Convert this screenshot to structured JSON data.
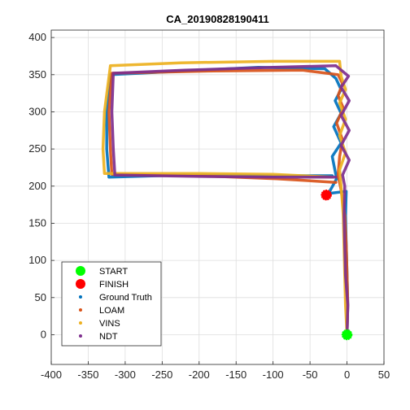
{
  "chart_data": {
    "type": "scatter",
    "title": "CA_20190828190411",
    "xlabel": "",
    "ylabel": "",
    "xlim": [
      -400,
      50
    ],
    "ylim": [
      -40,
      410
    ],
    "xticks": [
      -400,
      -350,
      -300,
      -250,
      -200,
      -150,
      -100,
      -50,
      0,
      50
    ],
    "yticks": [
      0,
      50,
      100,
      150,
      200,
      250,
      300,
      350,
      400
    ],
    "grid": true,
    "legend_position": "bottom-left",
    "legend": [
      "START",
      "FINISH",
      "Ground Truth",
      "LOAM",
      "VINS",
      "NDT"
    ],
    "markers": [
      {
        "name": "START",
        "x": 0,
        "y": 0,
        "color": "#00ff00"
      },
      {
        "name": "FINISH",
        "x": -28,
        "y": 188,
        "color": "#ff0000"
      }
    ],
    "series": [
      {
        "name": "Ground Truth",
        "color": "#0072bd",
        "points": [
          [
            0,
            0
          ],
          [
            1,
            40
          ],
          [
            0,
            80
          ],
          [
            -1,
            120
          ],
          [
            -2,
            160
          ],
          [
            -1,
            193
          ],
          [
            -25,
            190
          ],
          [
            -14,
            210
          ],
          [
            -20,
            240
          ],
          [
            -8,
            258
          ],
          [
            -18,
            280
          ],
          [
            -8,
            298
          ],
          [
            -16,
            315
          ],
          [
            -8,
            330
          ],
          [
            -15,
            345
          ],
          [
            -30,
            358
          ],
          [
            -120,
            360
          ],
          [
            -320,
            350
          ],
          [
            -325,
            300
          ],
          [
            -325,
            250
          ],
          [
            -322,
            212
          ],
          [
            -220,
            215
          ],
          [
            -110,
            214
          ],
          [
            -20,
            214
          ]
        ]
      },
      {
        "name": "LOAM",
        "color": "#d95319",
        "points": [
          [
            0,
            0
          ],
          [
            1,
            40
          ],
          [
            0,
            80
          ],
          [
            -1,
            120
          ],
          [
            -3,
            160
          ],
          [
            -8,
            195
          ],
          [
            -12,
            215
          ],
          [
            -10,
            240
          ],
          [
            -6,
            262
          ],
          [
            -14,
            285
          ],
          [
            -5,
            305
          ],
          [
            -12,
            322
          ],
          [
            -6,
            338
          ],
          [
            -12,
            350
          ],
          [
            -60,
            356
          ],
          [
            -180,
            355
          ],
          [
            -318,
            352
          ],
          [
            -322,
            300
          ],
          [
            -320,
            250
          ],
          [
            -318,
            216
          ],
          [
            -200,
            214
          ],
          [
            -95,
            210
          ],
          [
            -15,
            205
          ]
        ]
      },
      {
        "name": "VINS",
        "color": "#edb120",
        "points": [
          [
            0,
            0
          ],
          [
            -2,
            40
          ],
          [
            -3,
            80
          ],
          [
            -4,
            120
          ],
          [
            -5,
            160
          ],
          [
            -8,
            200
          ],
          [
            -10,
            222
          ],
          [
            -2,
            245
          ],
          [
            -10,
            268
          ],
          [
            -2,
            290
          ],
          [
            -10,
            312
          ],
          [
            -2,
            330
          ],
          [
            -8,
            348
          ],
          [
            -10,
            368
          ],
          [
            -100,
            368
          ],
          [
            -225,
            366
          ],
          [
            -320,
            362
          ],
          [
            -328,
            300
          ],
          [
            -330,
            250
          ],
          [
            -328,
            217
          ],
          [
            -200,
            217
          ],
          [
            -100,
            216
          ],
          [
            -20,
            212
          ]
        ]
      },
      {
        "name": "NDT",
        "color": "#7e2f8e",
        "points": [
          [
            0,
            0
          ],
          [
            1,
            40
          ],
          [
            -2,
            80
          ],
          [
            -3,
            120
          ],
          [
            -4,
            160
          ],
          [
            -3,
            200
          ],
          [
            -6,
            215
          ],
          [
            3,
            235
          ],
          [
            -8,
            255
          ],
          [
            3,
            275
          ],
          [
            -8,
            295
          ],
          [
            3,
            315
          ],
          [
            -8,
            333
          ],
          [
            2,
            348
          ],
          [
            -15,
            362
          ],
          [
            -100,
            360
          ],
          [
            -220,
            356
          ],
          [
            -316,
            352
          ],
          [
            -318,
            300
          ],
          [
            -316,
            250
          ],
          [
            -314,
            215
          ],
          [
            -200,
            213
          ],
          [
            -100,
            212
          ],
          [
            -15,
            212
          ]
        ]
      }
    ]
  }
}
